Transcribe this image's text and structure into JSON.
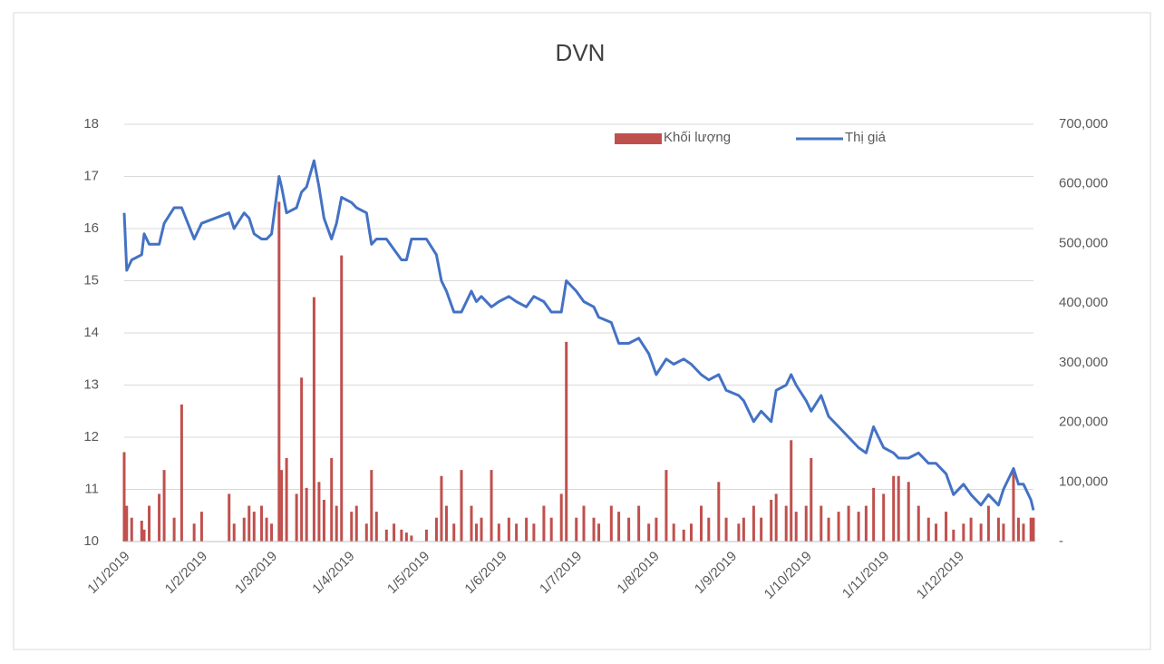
{
  "chart_data": {
    "type": "combo",
    "title": "DVN",
    "x": [
      "1/1/2019",
      "2/1/2019",
      "4/1/2019",
      "8/1/2019",
      "9/1/2019",
      "11/1/2019",
      "15/1/2019",
      "17/1/2019",
      "21/1/2019",
      "24/1/2019",
      "29/1/2019",
      "1/2/2019",
      "12/2/2019",
      "14/2/2019",
      "18/2/2019",
      "20/2/2019",
      "22/2/2019",
      "25/2/2019",
      "27/2/2019",
      "1/3/2019",
      "4/3/2019",
      "5/3/2019",
      "7/3/2019",
      "11/3/2019",
      "13/3/2019",
      "15/3/2019",
      "18/3/2019",
      "20/3/2019",
      "22/3/2019",
      "25/3/2019",
      "27/3/2019",
      "29/3/2019",
      "2/4/2019",
      "4/4/2019",
      "8/4/2019",
      "10/4/2019",
      "12/4/2019",
      "16/4/2019",
      "19/4/2019",
      "22/4/2019",
      "24/4/2019",
      "26/4/2019",
      "2/5/2019",
      "6/5/2019",
      "8/5/2019",
      "10/5/2019",
      "13/5/2019",
      "16/5/2019",
      "20/5/2019",
      "22/5/2019",
      "24/5/2019",
      "28/5/2019",
      "31/5/2019",
      "4/6/2019",
      "7/6/2019",
      "11/6/2019",
      "14/6/2019",
      "18/6/2019",
      "21/6/2019",
      "25/6/2019",
      "27/6/2019",
      "1/7/2019",
      "4/7/2019",
      "8/7/2019",
      "10/7/2019",
      "15/7/2019",
      "18/7/2019",
      "22/7/2019",
      "26/7/2019",
      "30/7/2019",
      "2/8/2019",
      "6/8/2019",
      "9/8/2019",
      "13/8/2019",
      "16/8/2019",
      "20/8/2019",
      "23/8/2019",
      "27/8/2019",
      "30/8/2019",
      "4/9/2019",
      "6/9/2019",
      "10/9/2019",
      "13/9/2019",
      "17/9/2019",
      "19/9/2019",
      "23/9/2019",
      "25/9/2019",
      "27/9/2019",
      "1/10/2019",
      "3/10/2019",
      "7/10/2019",
      "10/10/2019",
      "14/10/2019",
      "18/10/2019",
      "22/10/2019",
      "25/10/2019",
      "28/10/2019",
      "1/11/2019",
      "5/11/2019",
      "7/11/2019",
      "11/11/2019",
      "15/11/2019",
      "19/11/2019",
      "22/11/2019",
      "26/11/2019",
      "29/11/2019",
      "3/12/2019",
      "6/12/2019",
      "10/12/2019",
      "13/12/2019",
      "17/12/2019",
      "19/12/2019",
      "23/12/2019",
      "25/12/2019",
      "27/12/2019",
      "30/12/2019",
      "31/12/2019"
    ],
    "series": [
      {
        "name": "Khối lượng",
        "type": "bar",
        "axis": "y2",
        "color": "#c0504d",
        "values": [
          150000,
          60000,
          40000,
          35000,
          20000,
          60000,
          80000,
          120000,
          40000,
          230000,
          30000,
          50000,
          80000,
          30000,
          40000,
          60000,
          50000,
          60000,
          40000,
          30000,
          570000,
          120000,
          140000,
          80000,
          275000,
          90000,
          410000,
          100000,
          70000,
          140000,
          60000,
          480000,
          50000,
          60000,
          30000,
          120000,
          50000,
          20000,
          30000,
          20000,
          15000,
          10000,
          20000,
          40000,
          110000,
          60000,
          30000,
          120000,
          60000,
          30000,
          40000,
          120000,
          30000,
          40000,
          30000,
          40000,
          30000,
          60000,
          40000,
          80000,
          335000,
          40000,
          60000,
          40000,
          30000,
          60000,
          50000,
          40000,
          60000,
          30000,
          40000,
          120000,
          30000,
          20000,
          30000,
          60000,
          40000,
          100000,
          40000,
          30000,
          40000,
          60000,
          40000,
          70000,
          80000,
          60000,
          170000,
          50000,
          60000,
          140000,
          60000,
          40000,
          50000,
          60000,
          50000,
          60000,
          90000,
          80000,
          110000,
          110000,
          100000,
          60000,
          40000,
          30000,
          50000,
          20000,
          30000,
          40000,
          30000,
          60000,
          40000,
          30000,
          120000,
          40000,
          30000,
          40000,
          40000
        ]
      },
      {
        "name": "Thị giá",
        "type": "line",
        "color": "#4472c4",
        "values": [
          16.3,
          15.2,
          15.4,
          15.5,
          15.9,
          15.7,
          15.7,
          16.1,
          16.4,
          16.4,
          15.8,
          16.1,
          16.3,
          16.0,
          16.3,
          16.2,
          15.9,
          15.8,
          15.8,
          15.9,
          17.0,
          16.8,
          16.3,
          16.4,
          16.7,
          16.8,
          17.3,
          16.8,
          16.2,
          15.8,
          16.1,
          16.6,
          16.5,
          16.4,
          16.3,
          15.7,
          15.8,
          15.8,
          15.6,
          15.4,
          15.4,
          15.8,
          15.8,
          15.5,
          15.0,
          14.8,
          14.4,
          14.4,
          14.8,
          14.6,
          14.7,
          14.5,
          14.6,
          14.7,
          14.6,
          14.5,
          14.7,
          14.6,
          14.4,
          14.4,
          15.0,
          14.8,
          14.6,
          14.5,
          14.3,
          14.2,
          13.8,
          13.8,
          13.9,
          13.6,
          13.2,
          13.5,
          13.4,
          13.5,
          13.4,
          13.2,
          13.1,
          13.2,
          12.9,
          12.8,
          12.7,
          12.3,
          12.5,
          12.3,
          12.9,
          13.0,
          13.2,
          13.0,
          12.7,
          12.5,
          12.8,
          12.4,
          12.2,
          12.0,
          11.8,
          11.7,
          12.2,
          11.8,
          11.7,
          11.6,
          11.6,
          11.7,
          11.5,
          11.5,
          11.3,
          10.9,
          11.1,
          10.9,
          10.7,
          10.9,
          10.7,
          11.0,
          11.4,
          11.1,
          11.1,
          10.8,
          10.6
        ]
      }
    ],
    "xticks": [
      "1/1/2019",
      "1/2/2019",
      "1/3/2019",
      "1/4/2019",
      "1/5/2019",
      "1/6/2019",
      "1/7/2019",
      "1/8/2019",
      "1/9/2019",
      "1/10/2019",
      "1/11/2019",
      "1/12/2019"
    ],
    "xlim": [
      "1/1/2019",
      "31/12/2019"
    ],
    "ylim": [
      10,
      18
    ],
    "yticks": [
      10,
      11,
      12,
      13,
      14,
      15,
      16,
      17,
      18
    ],
    "y2lim": [
      0,
      700000
    ],
    "y2ticks": [
      {
        "value": 0,
        "label": "-"
      },
      {
        "value": 100000,
        "label": "100,000"
      },
      {
        "value": 200000,
        "label": "200,000"
      },
      {
        "value": 300000,
        "label": "300,000"
      },
      {
        "value": 400000,
        "label": "400,000"
      },
      {
        "value": 500000,
        "label": "500,000"
      },
      {
        "value": 600000,
        "label": "600,000"
      },
      {
        "value": 700000,
        "label": "700,000"
      }
    ],
    "grid": true,
    "legend": "top-right"
  }
}
